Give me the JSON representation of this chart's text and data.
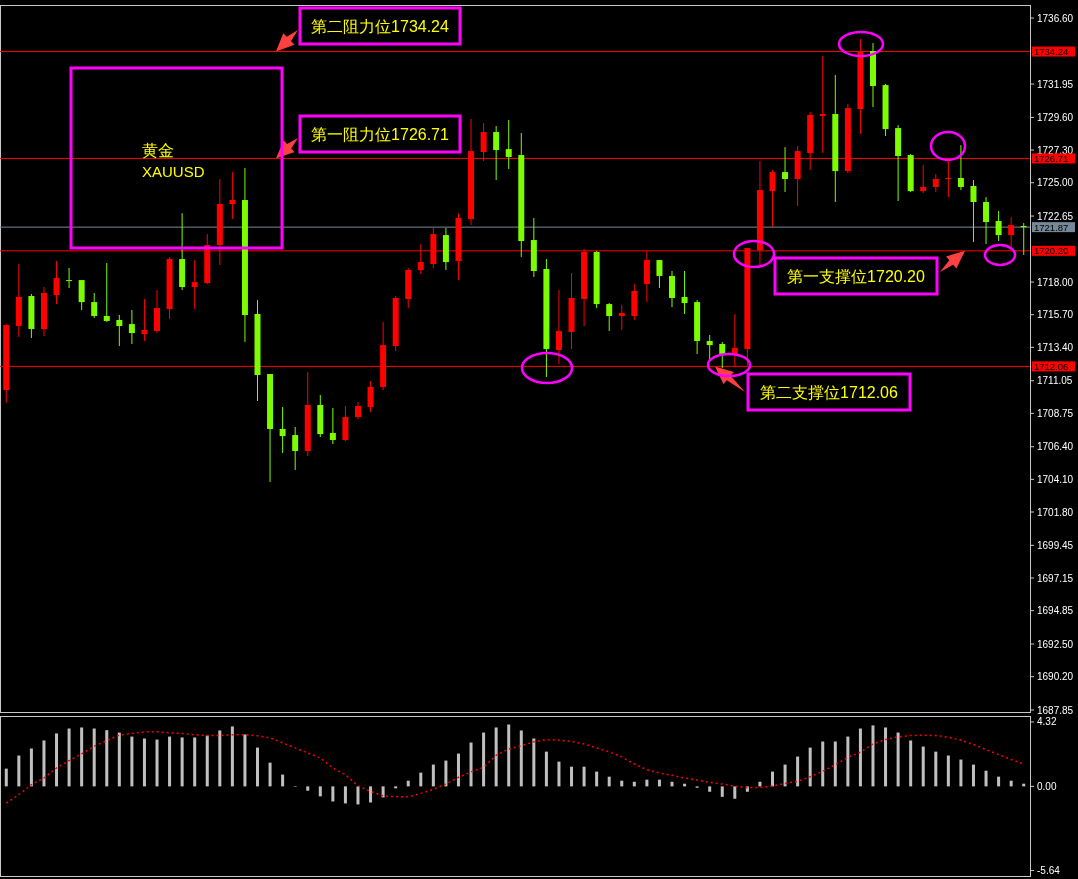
{
  "chart_data": [
    {
      "type": "candlestick",
      "title": "黄金",
      "subtitle": "XAUUSD",
      "tick_labels": "y",
      "grid": false,
      "categories": [
        null,
        null,
        null,
        null,
        null,
        null,
        null,
        null,
        null,
        null,
        null,
        null,
        null,
        null,
        null,
        null,
        null,
        null,
        null,
        null,
        null,
        null,
        null,
        null,
        null,
        null,
        null,
        null,
        null,
        null,
        null,
        null,
        null,
        null,
        null,
        null,
        null,
        null,
        null,
        null,
        null,
        null,
        null,
        null,
        null,
        null,
        null,
        null,
        null,
        null,
        null,
        null,
        null,
        null,
        null,
        null,
        null,
        null,
        null,
        null,
        null,
        null,
        null,
        null,
        null,
        null,
        null,
        null,
        null,
        null,
        null,
        null,
        null,
        null,
        null,
        null,
        null,
        null,
        null,
        null,
        null,
        null
      ],
      "ohlc": [
        [
          1710.39,
          1715.04,
          1709.48,
          1714.97
        ],
        [
          1714.9,
          1719.27,
          1714.13,
          1716.95
        ],
        [
          1717.02,
          1717.16,
          1714.06,
          1714.69
        ],
        [
          1714.69,
          1717.65,
          1714.2,
          1717.23
        ],
        [
          1717.09,
          1719.48,
          1716.45,
          1718.28
        ],
        [
          1718.14,
          1718.99,
          1717.58,
          1718.14
        ],
        [
          1718.14,
          1718.14,
          1716.03,
          1716.59
        ],
        [
          1716.59,
          1717.23,
          1715.47,
          1715.61
        ],
        [
          1715.61,
          1719.34,
          1715.19,
          1715.26
        ],
        [
          1715.33,
          1715.68,
          1713.49,
          1714.9
        ],
        [
          1715.04,
          1716.03,
          1713.64,
          1714.41
        ],
        [
          1714.34,
          1716.81,
          1713.85,
          1714.62
        ],
        [
          1714.55,
          1717.44,
          1714.41,
          1716.17
        ],
        [
          1716.1,
          1719.76,
          1715.4,
          1719.62
        ],
        [
          1719.62,
          1722.86,
          1717.44,
          1717.65
        ],
        [
          1717.65,
          1719.55,
          1716.1,
          1718.0
        ],
        [
          1717.93,
          1721.38,
          1717.86,
          1720.61
        ],
        [
          1720.61,
          1725.26,
          1719.2,
          1723.5
        ],
        [
          1723.5,
          1725.75,
          1722.44,
          1723.78
        ],
        [
          1723.78,
          1726.03,
          1713.78,
          1715.68
        ],
        [
          1715.75,
          1716.73,
          1709.62,
          1711.45
        ],
        [
          1711.52,
          1711.52,
          1703.91,
          1707.65
        ],
        [
          1707.65,
          1709.2,
          1705.96,
          1707.15
        ],
        [
          1707.22,
          1707.79,
          1704.76,
          1706.1
        ],
        [
          1706.1,
          1711.66,
          1705.74,
          1709.34
        ],
        [
          1709.34,
          1710.04,
          1707.08,
          1707.29
        ],
        [
          1707.37,
          1709.13,
          1706.59,
          1706.87
        ],
        [
          1706.87,
          1709.27,
          1706.8,
          1708.49
        ],
        [
          1708.49,
          1709.55,
          1708.35,
          1709.27
        ],
        [
          1709.2,
          1711.03,
          1708.84,
          1710.61
        ],
        [
          1710.61,
          1715.19,
          1710.39,
          1713.56
        ],
        [
          1713.49,
          1717.02,
          1713.14,
          1716.88
        ],
        [
          1716.81,
          1718.99,
          1716.17,
          1718.85
        ],
        [
          1718.85,
          1720.68,
          1718.57,
          1719.41
        ],
        [
          1719.27,
          1721.81,
          1718.99,
          1721.38
        ],
        [
          1721.31,
          1721.81,
          1718.85,
          1719.41
        ],
        [
          1719.48,
          1722.86,
          1718.14,
          1722.51
        ],
        [
          1722.44,
          1729.49,
          1722.02,
          1727.23
        ],
        [
          1727.16,
          1729.2,
          1726.53,
          1728.57
        ],
        [
          1728.57,
          1728.99,
          1725.19,
          1727.3
        ],
        [
          1727.37,
          1729.42,
          1725.96,
          1726.81
        ],
        [
          1726.95,
          1728.5,
          1719.76,
          1720.89
        ],
        [
          1720.96,
          1722.51,
          1718.36,
          1718.78
        ],
        [
          1718.92,
          1719.62,
          1711.31,
          1713.28
        ],
        [
          1713.21,
          1717.44,
          1712.23,
          1714.55
        ],
        [
          1714.48,
          1718.64,
          1713.28,
          1716.88
        ],
        [
          1716.81,
          1720.33,
          1714.9,
          1720.12
        ],
        [
          1720.12,
          1720.19,
          1716.17,
          1716.45
        ],
        [
          1716.45,
          1716.52,
          1714.55,
          1715.61
        ],
        [
          1715.61,
          1716.38,
          1714.62,
          1715.82
        ],
        [
          1715.61,
          1717.86,
          1715.33,
          1717.37
        ],
        [
          1717.86,
          1720.19,
          1716.59,
          1719.55
        ],
        [
          1719.55,
          1719.55,
          1717.58,
          1718.43
        ],
        [
          1718.43,
          1718.78,
          1716.24,
          1716.88
        ],
        [
          1716.95,
          1718.78,
          1715.75,
          1716.52
        ],
        [
          1716.59,
          1716.73,
          1712.93,
          1713.85
        ],
        [
          1713.85,
          1714.27,
          1712.51,
          1713.56
        ],
        [
          1713.64,
          1713.78,
          1711.94,
          1712.86
        ],
        [
          1712.93,
          1715.75,
          1712.09,
          1713.35
        ],
        [
          1713.28,
          1720.4,
          1712.09,
          1720.4
        ],
        [
          1720.26,
          1726.53,
          1719.2,
          1724.48
        ],
        [
          1724.41,
          1725.89,
          1721.88,
          1725.75
        ],
        [
          1725.75,
          1727.51,
          1724.34,
          1725.26
        ],
        [
          1725.26,
          1727.58,
          1723.36,
          1727.23
        ],
        [
          1727.09,
          1729.98,
          1725.89,
          1729.77
        ],
        [
          1729.7,
          1733.92,
          1727.09,
          1729.84
        ],
        [
          1729.84,
          1732.59,
          1723.64,
          1725.82
        ],
        [
          1725.82,
          1730.54,
          1725.68,
          1730.26
        ],
        [
          1730.19,
          1735.12,
          1728.43,
          1734.28
        ],
        [
          1734.28,
          1734.84,
          1730.33,
          1731.81
        ],
        [
          1731.88,
          1731.95,
          1728.29,
          1728.78
        ],
        [
          1728.85,
          1729.06,
          1723.71,
          1726.88
        ],
        [
          1726.95,
          1727.02,
          1724.34,
          1724.41
        ],
        [
          1724.41,
          1726.25,
          1724.27,
          1724.7
        ],
        [
          1724.7,
          1725.61,
          1724.34,
          1725.26
        ],
        [
          1725.33,
          1726.53,
          1723.99,
          1725.33
        ],
        [
          1725.33,
          1727.65,
          1724.48,
          1724.7
        ],
        [
          1724.77,
          1725.19,
          1720.82,
          1723.64
        ],
        [
          1723.64,
          1723.99,
          1720.68,
          1722.23
        ],
        [
          1722.3,
          1723.01,
          1720.89,
          1721.31
        ],
        [
          1721.31,
          1722.58,
          1720.26,
          1722.02
        ],
        [
          1721.95,
          1722.16,
          1719.91,
          1721.87
        ]
      ],
      "colors": [
        "#ff0000",
        "#ff0000",
        "#7cfc00",
        "#ff0000",
        "#ff0000",
        "#7cfc00",
        "#7cfc00",
        "#7cfc00",
        "#7cfc00",
        "#7cfc00",
        "#7cfc00",
        "#ff0000",
        "#ff0000",
        "#ff0000",
        "#7cfc00",
        "#ff0000",
        "#ff0000",
        "#ff0000",
        "#ff0000",
        "#7cfc00",
        "#7cfc00",
        "#7cfc00",
        "#7cfc00",
        "#7cfc00",
        "#ff0000",
        "#7cfc00",
        "#7cfc00",
        "#ff0000",
        "#ff0000",
        "#ff0000",
        "#ff0000",
        "#ff0000",
        "#ff0000",
        "#ff0000",
        "#ff0000",
        "#7cfc00",
        "#ff0000",
        "#ff0000",
        "#ff0000",
        "#7cfc00",
        "#7cfc00",
        "#7cfc00",
        "#7cfc00",
        "#7cfc00",
        "#ff0000",
        "#ff0000",
        "#ff0000",
        "#7cfc00",
        "#7cfc00",
        "#ff0000",
        "#ff0000",
        "#ff0000",
        "#7cfc00",
        "#7cfc00",
        "#7cfc00",
        "#7cfc00",
        "#7cfc00",
        "#7cfc00",
        "#ff0000",
        "#ff0000",
        "#ff0000",
        "#ff0000",
        "#7cfc00",
        "#ff0000",
        "#ff0000",
        "#ff0000",
        "#7cfc00",
        "#ff0000",
        "#ff0000",
        "#7cfc00",
        "#7cfc00",
        "#7cfc00",
        "#7cfc00",
        "#ff0000",
        "#ff0000",
        "#ff0000",
        "#7cfc00",
        "#7cfc00",
        "#7cfc00",
        "#7cfc00",
        "#ff0000",
        "#7cfc00"
      ],
      "ylim": [
        1687.71,
        1737.52
      ],
      "yticks": [
        {
          "value": 1736.6,
          "label": "1736.60"
        },
        1731.95,
        {
          "value": 1729.6,
          "label": "1729.60"
        },
        {
          "value": 1727.3,
          "label": "1727.30"
        },
        {
          "value": 1725,
          "label": "1725.00"
        },
        1722.65,
        {
          "value": 1718,
          "label": "1718.00"
        },
        {
          "value": 1715.7,
          "label": "1715.70"
        },
        {
          "value": 1713.4,
          "label": "1713.40"
        },
        1711.05,
        1708.75,
        {
          "value": 1706.4,
          "label": "1706.40"
        },
        {
          "value": 1704.1,
          "label": "1704.10"
        },
        {
          "value": 1701.8,
          "label": "1701.80"
        },
        1699.45,
        1697.15,
        1694.85,
        {
          "value": 1692.5,
          "label": "1692.50"
        },
        {
          "value": 1690.2,
          "label": "1690.20"
        },
        1687.85
      ],
      "ref_lines": [
        {
          "axis": "y",
          "value": 1734.24,
          "label": "1734.24",
          "color": "#ff0000"
        },
        {
          "axis": "y",
          "value": 1726.71,
          "label": "1726.71",
          "color": "#ff0000"
        },
        {
          "axis": "y",
          "value": 1721.87,
          "label": "1721.87",
          "color": "#778899"
        },
        {
          "axis": "y",
          "value": 1720.2,
          "label": "1720.20",
          "color": "#ff0000"
        },
        {
          "axis": "y",
          "value": 1712.06,
          "label": "1712.06",
          "color": "#ff0000"
        }
      ],
      "annotations": [
        {
          "text": "第二阻力位1734.24",
          "y": 1734.24
        },
        {
          "text": "第一阻力位1726.71",
          "y": 1726.71
        },
        {
          "text": "第一支撑位1720.20",
          "y": 1720.2
        },
        {
          "text": "第二支撑位1712.06",
          "y": 1712.06
        }
      ]
    },
    {
      "type": "bar",
      "tick_labels": "y",
      "grid": false,
      "categories": [
        null,
        null,
        null,
        null,
        null,
        null,
        null,
        null,
        null,
        null,
        null,
        null,
        null,
        null,
        null,
        null,
        null,
        null,
        null,
        null,
        null,
        null,
        null,
        null,
        null,
        null,
        null,
        null,
        null,
        null,
        null,
        null,
        null,
        null,
        null,
        null,
        null,
        null,
        null,
        null,
        null,
        null,
        null,
        null,
        null,
        null,
        null,
        null,
        null,
        null,
        null,
        null,
        null,
        null,
        null,
        null,
        null,
        null,
        null,
        null,
        null,
        null,
        null,
        null,
        null,
        null,
        null,
        null,
        null,
        null,
        null,
        null,
        null,
        null,
        null,
        null,
        null,
        null,
        null,
        null,
        null,
        null
      ],
      "ylim": [
        -6.01,
        4.72
      ],
      "yticks": [
        4.32,
        {
          "value": 0,
          "label": "0.00"
        },
        -5.64
      ],
      "series": [
        {
          "type": "bar",
          "color": "#c0c0c0",
          "values": [
            1.19,
            2.07,
            2.54,
            3.08,
            3.55,
            3.88,
            3.95,
            3.88,
            3.77,
            3.61,
            3.34,
            3.21,
            3.14,
            3.34,
            3.28,
            3.28,
            3.41,
            3.75,
            4.02,
            3.48,
            2.6,
            1.59,
            0.79,
            0,
            -0.29,
            -0.67,
            -1.01,
            -1.14,
            -1.21,
            -1.08,
            -0.74,
            -0.13,
            0.38,
            0.92,
            1.46,
            1.73,
            2.2,
            2.94,
            3.61,
            3.95,
            4.15,
            3.75,
            3.21,
            2.33,
            1.66,
            1.32,
            1.32,
            0.99,
            0.65,
            0.38,
            0.31,
            0.45,
            0.45,
            0.31,
            0.18,
            -0.09,
            -0.36,
            -0.7,
            -0.83,
            -0.36,
            0.31,
            0.99,
            1.46,
            2.0,
            2.6,
            3.01,
            3.01,
            3.34,
            3.88,
            4.09,
            3.95,
            3.61,
            3.08,
            2.67,
            2.33,
            2.07,
            1.8,
            1.46,
            1.05,
            0.65,
            0.38,
            0.18
          ]
        },
        {
          "type": "line",
          "color": "#ff0000",
          "line_style": "dotted",
          "values": [
            -1.12,
            -0.56,
            0.11,
            0.56,
            1.23,
            1.73,
            2.18,
            2.69,
            3.08,
            3.43,
            3.55,
            3.66,
            3.66,
            3.59,
            3.55,
            3.46,
            3.41,
            3.41,
            3.46,
            3.46,
            3.39,
            3.25,
            2.92,
            2.58,
            2.24,
            1.91,
            1.23,
            0.79,
            0.04,
            -0.34,
            -0.63,
            -0.7,
            -0.7,
            -0.47,
            -0.2,
            0.16,
            0.61,
            0.97,
            1.28,
            2.09,
            2.51,
            2.72,
            2.99,
            3.14,
            3.1,
            3.01,
            2.85,
            2.58,
            2.31,
            1.98,
            1.5,
            1.12,
            0.9,
            0.74,
            0.56,
            0.43,
            0.27,
            0.16,
            0.02,
            -0.09,
            -0.07,
            0.02,
            0.2,
            0.34,
            0.65,
            1.01,
            1.46,
            1.95,
            2.29,
            2.85,
            3.14,
            3.32,
            3.41,
            3.43,
            3.41,
            3.3,
            3.1,
            2.81,
            2.47,
            2.13,
            1.8,
            1.5
          ]
        }
      ]
    }
  ]
}
